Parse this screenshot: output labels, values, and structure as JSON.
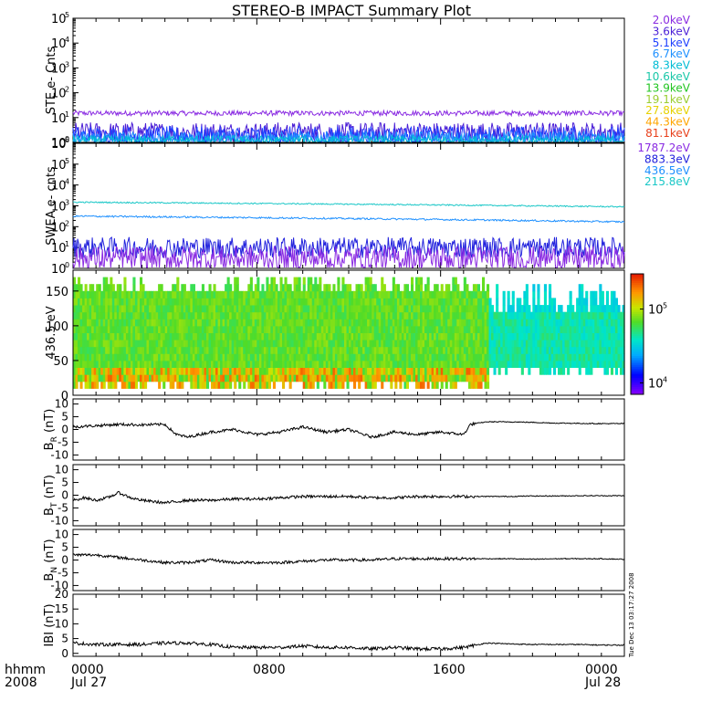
{
  "title": "STEREO-B IMPACT Summary Plot",
  "footer": {
    "hhmm_label": "hhmm",
    "year_label": "2008",
    "time_ticks": [
      "0000",
      "0800",
      "1600",
      "0000"
    ],
    "date_ticks": [
      "Jul 27",
      "",
      "",
      "Jul 28"
    ],
    "timestamp": "Tue Dec 13 03:17:27 2008"
  },
  "chart_data": [
    {
      "id": "ste",
      "type": "line",
      "ylabel": "STE e- Cnts",
      "yscale": "log",
      "ylim_exp": [
        0,
        5
      ],
      "x_hours": [
        0,
        24
      ],
      "legend": [
        {
          "name": "2.0keV",
          "color": "#8a2be2"
        },
        {
          "name": "3.6keV",
          "color": "#4b1fd6"
        },
        {
          "name": "5.1keV",
          "color": "#1e40ff"
        },
        {
          "name": "6.7keV",
          "color": "#1e90ff"
        },
        {
          "name": "8.3keV",
          "color": "#00bcd4"
        },
        {
          "name": "10.6keV",
          "color": "#19c7a8"
        },
        {
          "name": "13.9keV",
          "color": "#22c522"
        },
        {
          "name": "19.1keV",
          "color": "#9acd32"
        },
        {
          "name": "27.8keV",
          "color": "#e6d200"
        },
        {
          "name": "44.3keV",
          "color": "#ffa500"
        },
        {
          "name": "81.1keV",
          "color": "#e8401c"
        }
      ],
      "series": [
        {
          "name": "2.0keV",
          "level": 15,
          "noise": 0.1
        },
        {
          "name": "3.6keV",
          "level": 2.6,
          "noise": 0.4
        },
        {
          "name": "5.1keV",
          "level": 1.8,
          "noise": 0.4
        },
        {
          "name": "6.7keV",
          "level": 1.4,
          "noise": 0.3
        },
        {
          "name": "8.3keV",
          "level": 1.2,
          "noise": 0.2
        }
      ]
    },
    {
      "id": "swea",
      "type": "line",
      "ylabel": "SWEA e- cnts",
      "yscale": "log",
      "ylim_exp": [
        0,
        6
      ],
      "x_hours": [
        0,
        24
      ],
      "legend": [
        {
          "name": "1787.2eV",
          "color": "#8a2be2"
        },
        {
          "name": "883.3eV",
          "color": "#2222dd"
        },
        {
          "name": "436.5eV",
          "color": "#1e90ff"
        },
        {
          "name": "215.8eV",
          "color": "#19c7c7"
        }
      ],
      "series": [
        {
          "name": "215.8eV",
          "start": 1500,
          "end": 900,
          "noise": 0.03
        },
        {
          "name": "436.5eV",
          "start": 320,
          "end": 170,
          "noise": 0.04
        },
        {
          "name": "883.3eV",
          "level": 10,
          "noise": 0.5
        },
        {
          "name": "1787.2eV",
          "level": 3,
          "noise": 0.6
        }
      ]
    },
    {
      "id": "pad",
      "type": "heatmap",
      "ylabel": "436.5 eV",
      "ylim": [
        0,
        180
      ],
      "yticks": [
        "0",
        "50",
        "100",
        "150"
      ],
      "colorbar": {
        "min": 7000,
        "max": 300000,
        "ticks": [
          "10^4",
          "10^5"
        ]
      }
    },
    {
      "id": "br",
      "type": "line",
      "ylabel": "BR (nT)",
      "label_main": "B",
      "label_sub": "R",
      "label_unit": " (nT)",
      "ylim": [
        -12,
        12
      ],
      "yticks": [
        "10",
        "5",
        "0",
        "-5",
        "-10"
      ],
      "series": [
        {
          "name": "BR",
          "hours": [
            0,
            1,
            2,
            3,
            4,
            4.5,
            5,
            6,
            7,
            8,
            9,
            10,
            11,
            12,
            13,
            14,
            15,
            16,
            17,
            17.3,
            18,
            19,
            20,
            21,
            22,
            23,
            24
          ],
          "values": [
            1,
            1.5,
            2,
            1.8,
            2,
            -2,
            -3,
            -1,
            0,
            -2,
            -1,
            1,
            -1,
            0,
            -3,
            -1,
            -2,
            -1,
            -2,
            2,
            3,
            3,
            2.8,
            2.5,
            2.4,
            2.3,
            2.3
          ]
        }
      ]
    },
    {
      "id": "bt",
      "type": "line",
      "ylabel": "BT (nT)",
      "label_main": "B",
      "label_sub": "T",
      "label_unit": " (nT)",
      "ylim": [
        -12,
        12
      ],
      "yticks": [
        "10",
        "5",
        "0",
        "-5",
        "-10"
      ],
      "series": [
        {
          "name": "BT",
          "hours": [
            0,
            0.5,
            1,
            1.5,
            2,
            2.5,
            3,
            4,
            5,
            6,
            7,
            8,
            9,
            10,
            11,
            12,
            13,
            14,
            15,
            16,
            17,
            18,
            19,
            20,
            21,
            22,
            23,
            24
          ],
          "values": [
            -2,
            -1,
            -2,
            -1,
            1,
            -1,
            -2,
            -3,
            -2,
            -2,
            -1.5,
            -1.5,
            -1,
            -0.5,
            -0.5,
            -0.5,
            -1,
            -1,
            -0.5,
            -0.5,
            -0.5,
            -0.5,
            -0.5,
            -0.3,
            -0.3,
            -0.2,
            -0.2,
            -0.2
          ]
        }
      ]
    },
    {
      "id": "bn",
      "type": "line",
      "ylabel": "BN (nT)",
      "label_main": "B",
      "label_sub": "N",
      "label_unit": " (nT)",
      "ylim": [
        -12,
        12
      ],
      "yticks": [
        "10",
        "5",
        "0",
        "-5",
        "-10"
      ],
      "series": [
        {
          "name": "BN",
          "hours": [
            0,
            1,
            2,
            3,
            4,
            5,
            6,
            7,
            8,
            9,
            10,
            11,
            12,
            13,
            14,
            15,
            16,
            17,
            18,
            19,
            20,
            21,
            22,
            23,
            24
          ],
          "values": [
            2,
            2,
            1,
            0,
            -1,
            -1,
            0,
            -1,
            -1,
            -1,
            -0.5,
            0,
            0,
            0,
            0.5,
            0.5,
            0.5,
            0.5,
            0.5,
            0.5,
            0.3,
            0.5,
            0.5,
            0.5,
            0.3
          ]
        }
      ]
    },
    {
      "id": "bmag",
      "type": "line",
      "ylabel": "|B| (nT)",
      "label_main": "IBI",
      "label_sub": "",
      "label_unit": " (nT)",
      "ylim": [
        -1,
        20
      ],
      "yticks": [
        "20",
        "15",
        "10",
        "5",
        "0"
      ],
      "series": [
        {
          "name": "|B|",
          "hours": [
            0,
            1,
            2,
            3,
            4,
            5,
            6,
            7,
            8,
            9,
            10,
            11,
            12,
            13,
            14,
            15,
            16,
            17,
            18,
            19,
            20,
            21,
            22,
            23,
            24
          ],
          "values": [
            3.5,
            3,
            3,
            3,
            3.5,
            3.5,
            3,
            2,
            2,
            2,
            2.5,
            2,
            2,
            1.5,
            2,
            1.5,
            1.5,
            2,
            3.5,
            3.2,
            3,
            3,
            3,
            2.8,
            2.8
          ]
        }
      ]
    }
  ]
}
